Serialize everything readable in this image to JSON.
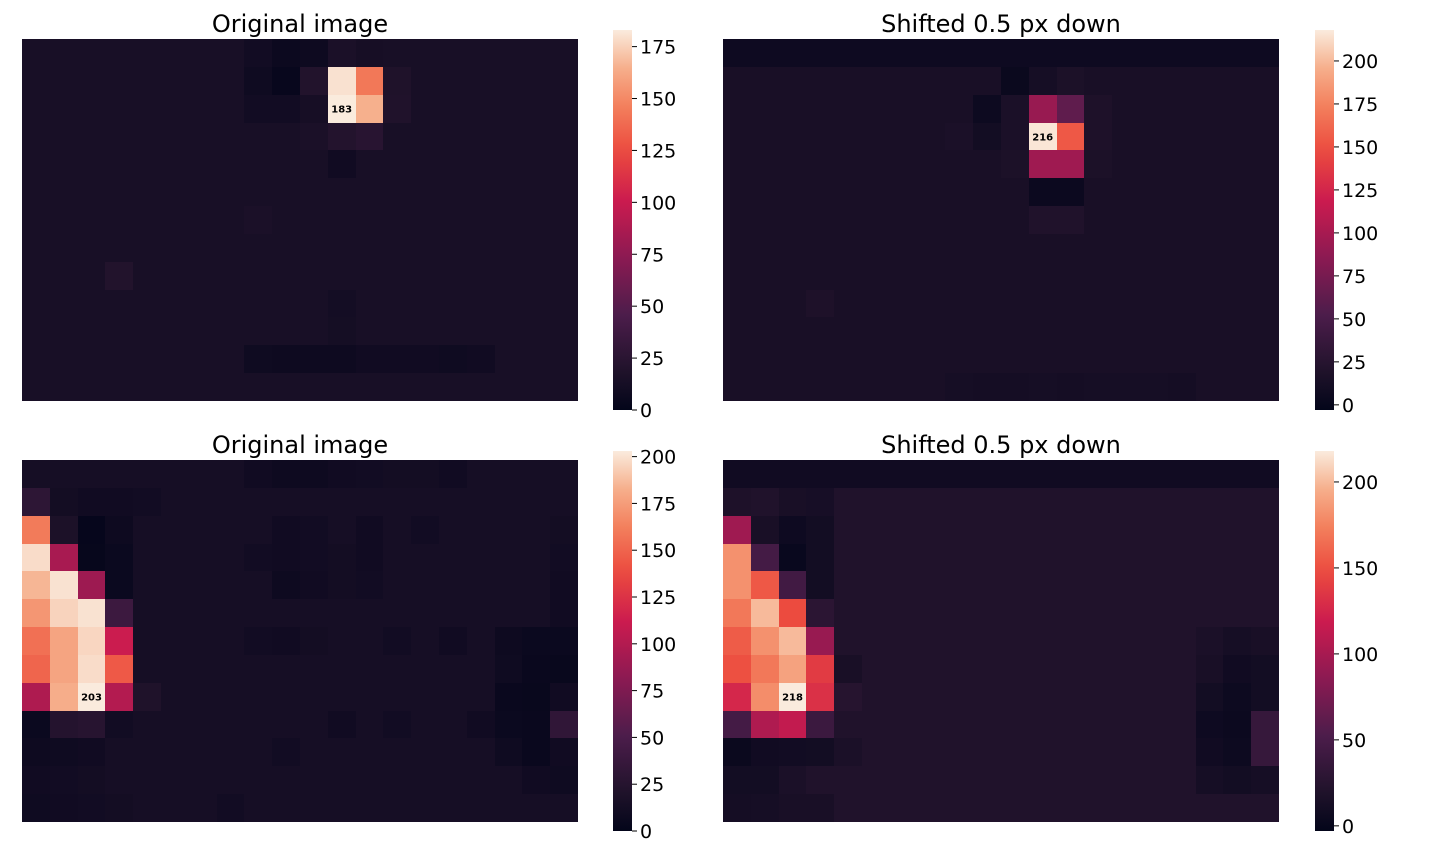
{
  "chart_data": [
    {
      "type": "heatmap",
      "title": "Original image",
      "rows": 13,
      "cols": 20,
      "base_value": 14,
      "cells": [
        [
          0,
          8,
          10
        ],
        [
          0,
          9,
          6
        ],
        [
          0,
          10,
          7
        ],
        [
          0,
          11,
          16
        ],
        [
          0,
          12,
          13
        ],
        [
          1,
          8,
          8
        ],
        [
          1,
          9,
          3
        ],
        [
          1,
          10,
          20
        ],
        [
          1,
          11,
          180
        ],
        [
          1,
          12,
          143
        ],
        [
          1,
          13,
          18
        ],
        [
          2,
          8,
          10
        ],
        [
          2,
          9,
          10
        ],
        [
          2,
          10,
          13
        ],
        [
          2,
          11,
          183
        ],
        [
          2,
          12,
          165
        ],
        [
          2,
          13,
          19
        ],
        [
          3,
          10,
          16
        ],
        [
          3,
          11,
          21
        ],
        [
          3,
          12,
          24
        ],
        [
          4,
          11,
          9
        ],
        [
          6,
          8,
          16
        ],
        [
          8,
          3,
          20
        ],
        [
          9,
          11,
          11
        ],
        [
          10,
          11,
          12
        ],
        [
          11,
          8,
          8
        ],
        [
          11,
          9,
          7
        ],
        [
          11,
          10,
          7
        ],
        [
          11,
          11,
          7
        ],
        [
          11,
          12,
          9
        ],
        [
          11,
          13,
          9
        ],
        [
          11,
          14,
          9
        ],
        [
          11,
          15,
          8
        ],
        [
          11,
          16,
          9
        ]
      ],
      "annotations": [
        {
          "row": 2,
          "col": 11,
          "text": "183"
        }
      ],
      "colorbar": {
        "min": 0,
        "max": 183,
        "ticks": [
          0,
          25,
          50,
          75,
          100,
          125,
          150,
          175
        ]
      },
      "colormap": "rocket"
    },
    {
      "type": "heatmap",
      "title": "Shifted 0.5 px down",
      "rows": 13,
      "cols": 20,
      "base_value": 14,
      "cells": [
        [
          0,
          -1,
          6
        ],
        [
          1,
          10,
          3
        ],
        [
          1,
          11,
          12
        ],
        [
          1,
          12,
          17
        ],
        [
          2,
          8,
          14
        ],
        [
          2,
          9,
          5
        ],
        [
          2,
          10,
          16
        ],
        [
          2,
          11,
          92
        ],
        [
          2,
          12,
          62
        ],
        [
          2,
          13,
          18
        ],
        [
          3,
          8,
          16
        ],
        [
          3,
          9,
          10
        ],
        [
          3,
          10,
          16
        ],
        [
          3,
          11,
          216
        ],
        [
          3,
          12,
          154
        ],
        [
          3,
          13,
          18
        ],
        [
          4,
          10,
          17
        ],
        [
          4,
          11,
          96
        ],
        [
          4,
          12,
          96
        ],
        [
          4,
          13,
          17
        ],
        [
          5,
          11,
          4
        ],
        [
          5,
          12,
          4
        ],
        [
          6,
          11,
          20
        ],
        [
          6,
          12,
          20
        ],
        [
          9,
          3,
          18
        ],
        [
          12,
          8,
          12
        ],
        [
          12,
          9,
          11
        ],
        [
          12,
          10,
          11
        ],
        [
          12,
          11,
          12
        ],
        [
          12,
          12,
          11
        ],
        [
          12,
          13,
          12
        ],
        [
          12,
          14,
          12
        ],
        [
          12,
          15,
          12
        ],
        [
          12,
          16,
          11
        ]
      ],
      "annotations": [
        {
          "row": 3,
          "col": 11,
          "text": "216"
        }
      ],
      "colorbar": {
        "min": -3,
        "max": 218,
        "ticks": [
          0,
          25,
          50,
          75,
          100,
          125,
          150,
          175,
          200
        ]
      },
      "colormap": "rocket"
    },
    {
      "type": "heatmap",
      "title": "Original image",
      "rows": 13,
      "cols": 20,
      "base_value": 14,
      "cells": [
        [
          0,
          8,
          10
        ],
        [
          0,
          9,
          8
        ],
        [
          0,
          10,
          8
        ],
        [
          0,
          11,
          10
        ],
        [
          0,
          12,
          11
        ],
        [
          0,
          13,
          12
        ],
        [
          0,
          14,
          12
        ],
        [
          0,
          15,
          10
        ],
        [
          1,
          0,
          30
        ],
        [
          1,
          1,
          12
        ],
        [
          1,
          2,
          10
        ],
        [
          1,
          3,
          10
        ],
        [
          1,
          4,
          11
        ],
        [
          2,
          0,
          160
        ],
        [
          2,
          1,
          18
        ],
        [
          2,
          2,
          2
        ],
        [
          2,
          3,
          8
        ],
        [
          2,
          9,
          10
        ],
        [
          2,
          10,
          11
        ],
        [
          2,
          12,
          10
        ],
        [
          2,
          14,
          11
        ],
        [
          2,
          19,
          12
        ],
        [
          3,
          0,
          198
        ],
        [
          3,
          1,
          95
        ],
        [
          3,
          2,
          3
        ],
        [
          3,
          3,
          6
        ],
        [
          3,
          8,
          11
        ],
        [
          3,
          9,
          10
        ],
        [
          3,
          10,
          11
        ],
        [
          3,
          11,
          12
        ],
        [
          3,
          12,
          10
        ],
        [
          3,
          19,
          11
        ],
        [
          4,
          0,
          185
        ],
        [
          4,
          1,
          200
        ],
        [
          4,
          2,
          90
        ],
        [
          4,
          3,
          6
        ],
        [
          4,
          9,
          8
        ],
        [
          4,
          10,
          10
        ],
        [
          4,
          11,
          12
        ],
        [
          4,
          12,
          11
        ],
        [
          4,
          19,
          10
        ],
        [
          5,
          0,
          172
        ],
        [
          5,
          1,
          195
        ],
        [
          5,
          2,
          200
        ],
        [
          5,
          3,
          40
        ],
        [
          5,
          19,
          10
        ],
        [
          6,
          0,
          155
        ],
        [
          6,
          1,
          178
        ],
        [
          6,
          2,
          196
        ],
        [
          6,
          3,
          112
        ],
        [
          6,
          8,
          11
        ],
        [
          6,
          9,
          10
        ],
        [
          6,
          10,
          12
        ],
        [
          6,
          13,
          11
        ],
        [
          6,
          15,
          10
        ],
        [
          6,
          17,
          8
        ],
        [
          6,
          18,
          6
        ],
        [
          6,
          19,
          6
        ],
        [
          7,
          0,
          150
        ],
        [
          7,
          1,
          178
        ],
        [
          7,
          2,
          198
        ],
        [
          7,
          3,
          145
        ],
        [
          7,
          17,
          9
        ],
        [
          7,
          18,
          5
        ],
        [
          7,
          19,
          4
        ],
        [
          8,
          0,
          98
        ],
        [
          8,
          1,
          182
        ],
        [
          8,
          2,
          203
        ],
        [
          8,
          3,
          100
        ],
        [
          8,
          4,
          20
        ],
        [
          8,
          17,
          5
        ],
        [
          8,
          18,
          4
        ],
        [
          8,
          19,
          10
        ],
        [
          9,
          0,
          6
        ],
        [
          9,
          1,
          24
        ],
        [
          9,
          2,
          26
        ],
        [
          9,
          3,
          11
        ],
        [
          9,
          11,
          10
        ],
        [
          9,
          13,
          11
        ],
        [
          9,
          16,
          10
        ],
        [
          9,
          17,
          6
        ],
        [
          9,
          18,
          5
        ],
        [
          9,
          19,
          32
        ],
        [
          10,
          0,
          8
        ],
        [
          10,
          1,
          9
        ],
        [
          10,
          2,
          10
        ],
        [
          10,
          9,
          11
        ],
        [
          10,
          17,
          9
        ],
        [
          10,
          18,
          5
        ],
        [
          10,
          19,
          10
        ],
        [
          11,
          0,
          10
        ],
        [
          11,
          1,
          11
        ],
        [
          11,
          2,
          12
        ],
        [
          11,
          18,
          10
        ],
        [
          11,
          19,
          9
        ],
        [
          12,
          0,
          9
        ],
        [
          12,
          1,
          10
        ],
        [
          12,
          2,
          11
        ],
        [
          12,
          3,
          12
        ],
        [
          12,
          7,
          11
        ]
      ],
      "annotations": [
        {
          "row": 8,
          "col": 2,
          "text": "203"
        }
      ],
      "colorbar": {
        "min": 0,
        "max": 203,
        "ticks": [
          0,
          25,
          50,
          75,
          100,
          125,
          150,
          175,
          200
        ]
      },
      "colormap": "rocket"
    },
    {
      "type": "heatmap",
      "title": "Shifted 0.5 px down",
      "rows": 13,
      "cols": 20,
      "base_value": 20,
      "cells": [
        [
          0,
          -1,
          8
        ],
        [
          1,
          0,
          18
        ],
        [
          1,
          1,
          20
        ],
        [
          1,
          2,
          14
        ],
        [
          1,
          3,
          13
        ],
        [
          2,
          0,
          96
        ],
        [
          2,
          1,
          14
        ],
        [
          2,
          2,
          6
        ],
        [
          2,
          3,
          10
        ],
        [
          3,
          0,
          182
        ],
        [
          3,
          1,
          46
        ],
        [
          3,
          2,
          2
        ],
        [
          3,
          3,
          10
        ],
        [
          4,
          0,
          182
        ],
        [
          4,
          1,
          154
        ],
        [
          4,
          2,
          44
        ],
        [
          4,
          3,
          10
        ],
        [
          5,
          0,
          170
        ],
        [
          5,
          1,
          200
        ],
        [
          5,
          2,
          148
        ],
        [
          5,
          3,
          28
        ],
        [
          6,
          0,
          156
        ],
        [
          6,
          1,
          182
        ],
        [
          6,
          2,
          200
        ],
        [
          6,
          3,
          92
        ],
        [
          6,
          17,
          16
        ],
        [
          6,
          18,
          12
        ],
        [
          6,
          19,
          14
        ],
        [
          7,
          0,
          150
        ],
        [
          7,
          1,
          170
        ],
        [
          7,
          2,
          190
        ],
        [
          7,
          3,
          138
        ],
        [
          7,
          4,
          14
        ],
        [
          7,
          17,
          14
        ],
        [
          7,
          18,
          8
        ],
        [
          7,
          19,
          10
        ],
        [
          8,
          0,
          126
        ],
        [
          8,
          1,
          180
        ],
        [
          8,
          2,
          218
        ],
        [
          8,
          3,
          132
        ],
        [
          8,
          4,
          24
        ],
        [
          8,
          17,
          10
        ],
        [
          8,
          18,
          5
        ],
        [
          8,
          19,
          10
        ],
        [
          9,
          0,
          46
        ],
        [
          9,
          1,
          104
        ],
        [
          9,
          2,
          114
        ],
        [
          9,
          3,
          40
        ],
        [
          9,
          4,
          20
        ],
        [
          9,
          17,
          6
        ],
        [
          9,
          18,
          4
        ],
        [
          9,
          19,
          36
        ],
        [
          10,
          0,
          3
        ],
        [
          10,
          1,
          8
        ],
        [
          10,
          2,
          9
        ],
        [
          10,
          3,
          10
        ],
        [
          10,
          4,
          16
        ],
        [
          10,
          17,
          8
        ],
        [
          10,
          18,
          5
        ],
        [
          10,
          19,
          36
        ],
        [
          11,
          0,
          10
        ],
        [
          11,
          1,
          10
        ],
        [
          11,
          2,
          16
        ],
        [
          11,
          17,
          12
        ],
        [
          11,
          18,
          10
        ],
        [
          11,
          19,
          12
        ],
        [
          12,
          0,
          11
        ],
        [
          12,
          1,
          12
        ],
        [
          12,
          2,
          14
        ],
        [
          12,
          3,
          14
        ]
      ],
      "annotations": [
        {
          "row": 8,
          "col": 2,
          "text": "218"
        }
      ],
      "colorbar": {
        "min": -3,
        "max": 218,
        "ticks": [
          0,
          50,
          100,
          150,
          200
        ]
      },
      "colormap": "rocket"
    }
  ]
}
